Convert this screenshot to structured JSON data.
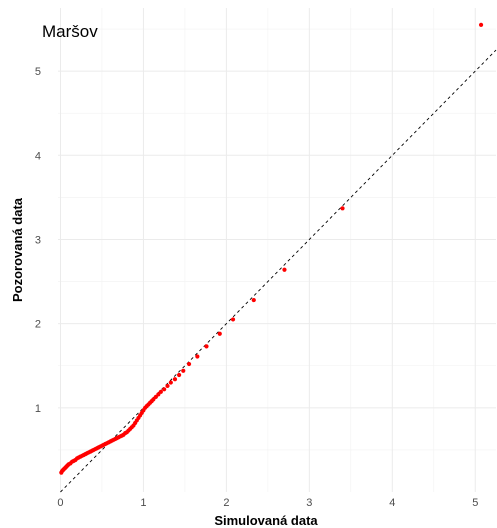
{
  "chart_data": {
    "type": "scatter",
    "title": "Maršov",
    "xlabel": "Simulovaná data",
    "ylabel": "Pozorovaná data",
    "xlim": [
      -0.03,
      5.25
    ],
    "ylim": [
      0.0,
      5.75
    ],
    "x_ticks": [
      0,
      1,
      2,
      3,
      4,
      5
    ],
    "y_ticks": [
      1,
      2,
      3,
      4,
      5
    ],
    "grid": true,
    "reference_line": {
      "slope": 1,
      "intercept": 0,
      "style": "dashed",
      "color": "#000000"
    },
    "point_color": "#ff0000",
    "series": [
      {
        "x": [
          0.01,
          0.02,
          0.03,
          0.04,
          0.05,
          0.06,
          0.07,
          0.08,
          0.09,
          0.1,
          0.12,
          0.14,
          0.16,
          0.18,
          0.2,
          0.22,
          0.24,
          0.26,
          0.28,
          0.3,
          0.32,
          0.34,
          0.36,
          0.38,
          0.4,
          0.42,
          0.44,
          0.46,
          0.48,
          0.5,
          0.52,
          0.54,
          0.56,
          0.58,
          0.6,
          0.62,
          0.64,
          0.66,
          0.68,
          0.7,
          0.72,
          0.74,
          0.76,
          0.78,
          0.8,
          0.82,
          0.84,
          0.86,
          0.88,
          0.9,
          0.92,
          0.94,
          0.96,
          0.98,
          1.0,
          1.02,
          1.04,
          1.06,
          1.08,
          1.1,
          1.12,
          1.15,
          1.18,
          1.21,
          1.25,
          1.29,
          1.33,
          1.38,
          1.43,
          1.48,
          1.55,
          1.65,
          1.76,
          1.92,
          2.08,
          2.33,
          2.7,
          3.4,
          5.07
        ],
        "y": [
          0.23,
          0.25,
          0.26,
          0.27,
          0.28,
          0.29,
          0.3,
          0.31,
          0.32,
          0.33,
          0.34,
          0.36,
          0.37,
          0.38,
          0.4,
          0.41,
          0.42,
          0.43,
          0.44,
          0.45,
          0.46,
          0.47,
          0.48,
          0.49,
          0.5,
          0.51,
          0.52,
          0.53,
          0.54,
          0.55,
          0.56,
          0.57,
          0.58,
          0.59,
          0.6,
          0.61,
          0.62,
          0.63,
          0.64,
          0.65,
          0.66,
          0.67,
          0.68,
          0.7,
          0.71,
          0.73,
          0.75,
          0.77,
          0.79,
          0.82,
          0.85,
          0.88,
          0.91,
          0.94,
          0.97,
          1.0,
          1.02,
          1.04,
          1.06,
          1.08,
          1.1,
          1.13,
          1.16,
          1.19,
          1.22,
          1.26,
          1.3,
          1.34,
          1.39,
          1.44,
          1.52,
          1.61,
          1.73,
          1.88,
          2.05,
          2.28,
          2.64,
          3.37,
          5.55
        ]
      }
    ]
  }
}
